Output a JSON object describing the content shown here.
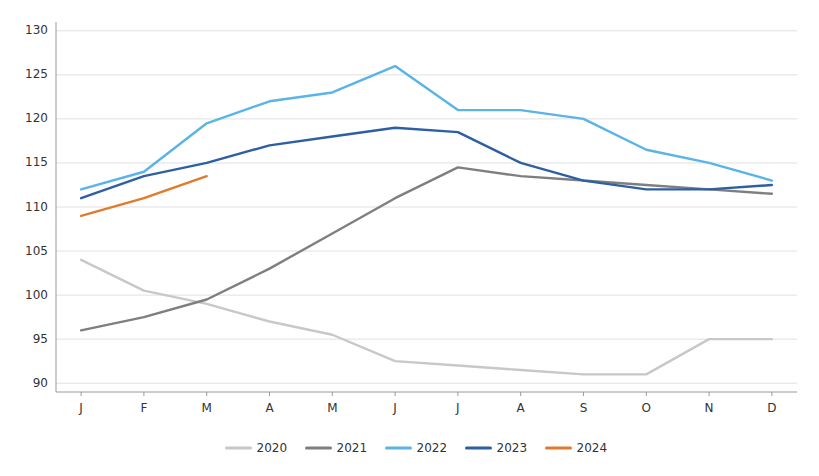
{
  "chart_data": {
    "type": "line",
    "categories": [
      "J",
      "F",
      "M",
      "A",
      "M",
      "J",
      "J",
      "A",
      "S",
      "O",
      "N",
      "D"
    ],
    "series": [
      {
        "name": "2020",
        "color": "#c8c8c8",
        "values": [
          104,
          100.5,
          99,
          97,
          95.5,
          92.5,
          92,
          91.5,
          91,
          91,
          95,
          95
        ]
      },
      {
        "name": "2021",
        "color": "#7f7f7f",
        "values": [
          96,
          97.5,
          99.5,
          103,
          107,
          111,
          114.5,
          113.5,
          113,
          112.5,
          112,
          111.5
        ]
      },
      {
        "name": "2022",
        "color": "#5ab4e5",
        "values": [
          112,
          114,
          119.5,
          122,
          123,
          126,
          121,
          121,
          120,
          116.5,
          115,
          113
        ]
      },
      {
        "name": "2023",
        "color": "#2e5fa3",
        "values": [
          111,
          113.5,
          115,
          117,
          118,
          119,
          118.5,
          115,
          113,
          112,
          112,
          112.5
        ]
      },
      {
        "name": "2024",
        "color": "#e07b2e",
        "values": [
          109,
          111,
          113.5,
          null,
          null,
          null,
          null,
          null,
          null,
          null,
          null,
          null
        ]
      }
    ],
    "ylim": [
      89,
      131
    ],
    "yticks": [
      90,
      95,
      100,
      105,
      110,
      115,
      120,
      125,
      130
    ],
    "grid": true,
    "legend": "bottom"
  }
}
